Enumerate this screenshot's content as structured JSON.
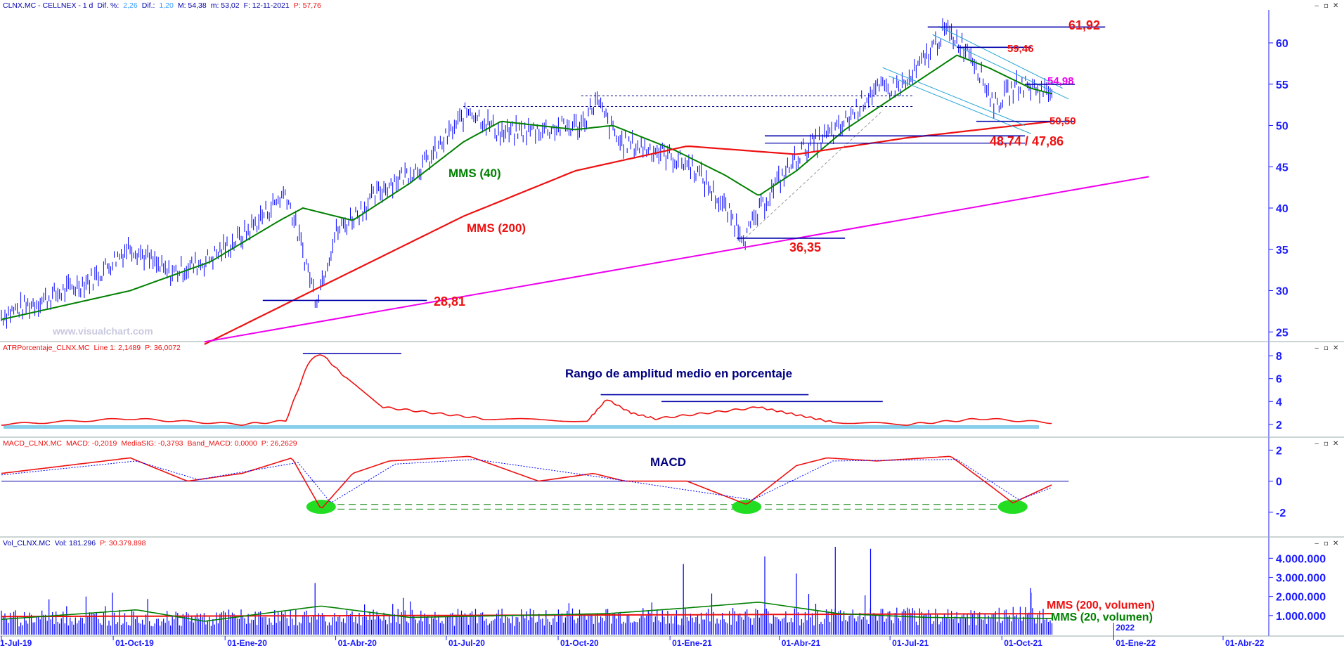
{
  "colors": {
    "price": "#0000ff",
    "mms40": "#008000",
    "mms200": "#ee1111",
    "trend": "#ee00ee",
    "axis": "#1a1aff",
    "label_red": "#ee1111",
    "label_magenta": "#ee00ee",
    "macd_signal": "#0000ff",
    "highlight": "#22dd22",
    "atr_base": "#87ceeb"
  },
  "window_buttons": [
    "‒",
    "▫",
    "✕"
  ],
  "panels": {
    "price": {
      "header": [
        {
          "text": "CLNX.MC - CELLNEX - 1 d",
          "color": "#0000aa"
        },
        {
          "text": "Dif. %:",
          "color": "#0000aa"
        },
        {
          "text": "2,26",
          "color": "#3399ff"
        },
        {
          "text": "Dif.:",
          "color": "#0000aa"
        },
        {
          "text": "1,20",
          "color": "#3399ff"
        },
        {
          "text": "M: 54,38",
          "color": "#0000aa"
        },
        {
          "text": "m: 53,02",
          "color": "#0000aa"
        },
        {
          "text": "F: 12-11-2021",
          "color": "#0000aa"
        },
        {
          "text": "P: 57,76",
          "color": "#ee1111"
        }
      ],
      "y_ticks": [
        "25",
        "30",
        "35",
        "40",
        "45",
        "50",
        "55",
        "60"
      ],
      "watermark": "www.visualchart.com"
    },
    "atr": {
      "header": [
        {
          "text": "ATRPorcentaje_CLNX.MC",
          "color": "#ee1111"
        },
        {
          "text": "Line 1: 2,1489",
          "color": "#ee1111"
        },
        {
          "text": "P: 36,0072",
          "color": "#ee1111"
        }
      ],
      "title": "Rango de amplitud medio en porcentaje",
      "y_ticks": [
        "2",
        "4",
        "6",
        "8"
      ]
    },
    "macd": {
      "header": [
        {
          "text": "MACD_CLNX.MC",
          "color": "#ee1111"
        },
        {
          "text": "MACD: -0,2019",
          "color": "#ee1111"
        },
        {
          "text": "MediaSIG: -0,3793",
          "color": "#ee1111"
        },
        {
          "text": "Band_MACD: 0,0000",
          "color": "#ee1111"
        },
        {
          "text": "P: 26,2629",
          "color": "#ee1111"
        }
      ],
      "title": "MACD",
      "y_ticks": [
        "-2",
        "0",
        "2"
      ]
    },
    "volume": {
      "header": [
        {
          "text": "Vol_CLNX.MC",
          "color": "#0000aa"
        },
        {
          "text": "Vol: 181.296",
          "color": "#0000aa"
        },
        {
          "text": "P: 30.379.898",
          "color": "#ee1111"
        }
      ],
      "y_ticks": [
        "1.000.000",
        "2.000.000",
        "3.000.000",
        "4.000.000"
      ],
      "legend_mms200": "MMS (200, volumen)",
      "legend_mms20": "MMS (20, volumen)"
    }
  },
  "x_ticks": [
    "1-Jul-19",
    "01-Oct-19",
    "01-Ene-20",
    "01-Abr-20",
    "01-Jul-20",
    "01-Oct-20",
    "01-Ene-21",
    "01-Abr-21",
    "01-Jul-21",
    "01-Oct-21",
    "01-Ene-22",
    "01-Abr-22"
  ],
  "x_year_marker": "2022",
  "annotations": {
    "mms40": "MMS (40)",
    "mms200": "MMS (200)",
    "l6192": "61,92",
    "l5946": "59,46",
    "l5498": "54,98",
    "l5050": "50,50",
    "l4874": "48,74 / 47,86",
    "l3635": "36,35",
    "l2881": "28,81"
  },
  "chart_data": [
    {
      "type": "ohlc",
      "name": "CLNX.MC",
      "y_range": [
        24,
        64
      ],
      "x_range": [
        "2019-07-01",
        "2022-06-01"
      ],
      "key_points": [
        {
          "date": "2019-07-01",
          "close": 27.0
        },
        {
          "date": "2019-08-15",
          "close": 29.5
        },
        {
          "date": "2019-09-15",
          "close": 31.5
        },
        {
          "date": "2019-10-15",
          "close": 35.5
        },
        {
          "date": "2019-11-15",
          "close": 32.0
        },
        {
          "date": "2019-12-15",
          "close": 33.5
        },
        {
          "date": "2020-01-15",
          "close": 36.5
        },
        {
          "date": "2020-02-20",
          "close": 42.0
        },
        {
          "date": "2020-03-16",
          "close": 29.0
        },
        {
          "date": "2020-04-01",
          "close": 37.0
        },
        {
          "date": "2020-05-15",
          "close": 43.0
        },
        {
          "date": "2020-06-15",
          "close": 45.5
        },
        {
          "date": "2020-07-20",
          "close": 52.0
        },
        {
          "date": "2020-08-15",
          "close": 49.0
        },
        {
          "date": "2020-09-15",
          "close": 49.5
        },
        {
          "date": "2020-10-20",
          "close": 50.0
        },
        {
          "date": "2020-11-01",
          "close": 53.0
        },
        {
          "date": "2020-11-20",
          "close": 48.0
        },
        {
          "date": "2020-12-20",
          "close": 47.0
        },
        {
          "date": "2021-01-20",
          "close": 45.0
        },
        {
          "date": "2021-02-15",
          "close": 40.0
        },
        {
          "date": "2021-03-04",
          "close": 36.5
        },
        {
          "date": "2021-03-25",
          "close": 42.0
        },
        {
          "date": "2021-04-20",
          "close": 47.0
        },
        {
          "date": "2021-05-20",
          "close": 49.5
        },
        {
          "date": "2021-06-15",
          "close": 54.0
        },
        {
          "date": "2021-07-15",
          "close": 55.0
        },
        {
          "date": "2021-08-15",
          "close": 61.5
        },
        {
          "date": "2021-09-05",
          "close": 59.0
        },
        {
          "date": "2021-09-25",
          "close": 52.5
        },
        {
          "date": "2021-10-15",
          "close": 55.0
        },
        {
          "date": "2021-11-12",
          "close": 54.0
        }
      ],
      "series": [
        {
          "name": "MMS (40)",
          "points": [
            {
              "date": "2019-07-01",
              "value": 26.5
            },
            {
              "date": "2019-10-15",
              "value": 30.0
            },
            {
              "date": "2019-12-20",
              "value": 33.5
            },
            {
              "date": "2020-02-15",
              "value": 38.5
            },
            {
              "date": "2020-03-05",
              "value": 40.0
            },
            {
              "date": "2020-04-15",
              "value": 38.5
            },
            {
              "date": "2020-06-01",
              "value": 43.0
            },
            {
              "date": "2020-07-15",
              "value": 48.0
            },
            {
              "date": "2020-08-15",
              "value": 50.5
            },
            {
              "date": "2020-10-15",
              "value": 49.5
            },
            {
              "date": "2020-11-15",
              "value": 50.0
            },
            {
              "date": "2021-01-05",
              "value": 47.0
            },
            {
              "date": "2021-02-15",
              "value": 44.0
            },
            {
              "date": "2021-03-15",
              "value": 41.5
            },
            {
              "date": "2021-04-15",
              "value": 44.5
            },
            {
              "date": "2021-05-25",
              "value": 49.5
            },
            {
              "date": "2021-07-15",
              "value": 54.5
            },
            {
              "date": "2021-08-25",
              "value": 58.5
            },
            {
              "date": "2021-09-20",
              "value": 57.0
            },
            {
              "date": "2021-10-25",
              "value": 54.5
            },
            {
              "date": "2021-11-12",
              "value": 53.8
            }
          ]
        },
        {
          "name": "MMS (200)",
          "points": [
            {
              "date": "2019-12-15",
              "value": 23.5
            },
            {
              "date": "2020-03-20",
              "value": 30.5
            },
            {
              "date": "2020-07-15",
              "value": 39.0
            },
            {
              "date": "2020-10-15",
              "value": 44.5
            },
            {
              "date": "2021-01-15",
              "value": 47.5
            },
            {
              "date": "2021-04-15",
              "value": 46.5
            },
            {
              "date": "2021-07-15",
              "value": 48.5
            },
            {
              "date": "2021-11-12",
              "value": 50.5
            }
          ]
        },
        {
          "name": "trendline",
          "points": [
            {
              "date": "2019-12-15",
              "value": 23.8
            },
            {
              "date": "2022-01-30",
              "value": 43.8
            }
          ]
        }
      ],
      "levels": [
        {
          "label": "61,92",
          "value": 61.92,
          "from": "2021-08-01",
          "to": "2021-12-25"
        },
        {
          "label": "59,46",
          "value": 59.46,
          "from": "2021-08-25",
          "to": "2021-10-25"
        },
        {
          "label": "54,98",
          "value": 54.98,
          "from": "2021-10-20",
          "to": "2021-11-30"
        },
        {
          "label": "50,50",
          "value": 50.5,
          "from": "2021-09-10",
          "to": "2021-11-30"
        },
        {
          "label": "48,74 / 47,86",
          "value": 48.74,
          "value2": 47.86,
          "from": "2021-03-20",
          "to": "2021-10-20"
        },
        {
          "label": "36,35",
          "value": 36.35,
          "from": "2021-02-25",
          "to": "2021-05-25"
        },
        {
          "label": "28,81",
          "value": 28.81,
          "from": "2020-02-01",
          "to": "2020-06-15"
        }
      ]
    },
    {
      "type": "line",
      "name": "ATRPorcentaje_CLNX.MC",
      "y_range": [
        1.5,
        8.5
      ],
      "series": [
        {
          "points": [
            {
              "date": "2019-07-01",
              "value": 2.0
            },
            {
              "date": "2019-10-15",
              "value": 2.5
            },
            {
              "date": "2020-01-15",
              "value": 2.0
            },
            {
              "date": "2020-02-20",
              "value": 2.3
            },
            {
              "date": "2020-03-10",
              "value": 7.5
            },
            {
              "date": "2020-03-20",
              "value": 8.2
            },
            {
              "date": "2020-04-10",
              "value": 6.0
            },
            {
              "date": "2020-05-10",
              "value": 3.5
            },
            {
              "date": "2020-08-01",
              "value": 2.5
            },
            {
              "date": "2020-10-25",
              "value": 2.3
            },
            {
              "date": "2020-11-10",
              "value": 4.2
            },
            {
              "date": "2020-11-30",
              "value": 3.0
            },
            {
              "date": "2020-12-20",
              "value": 2.5
            },
            {
              "date": "2021-03-15",
              "value": 3.5
            },
            {
              "date": "2021-05-15",
              "value": 2.2
            },
            {
              "date": "2021-07-15",
              "value": 2.0
            },
            {
              "date": "2021-09-15",
              "value": 2.5
            },
            {
              "date": "2021-11-12",
              "value": 2.15
            }
          ]
        }
      ],
      "levels": [
        {
          "value": 8.2,
          "from": "2020-03-05",
          "to": "2020-05-25"
        },
        {
          "value": 4.6,
          "from": "2020-11-05",
          "to": "2021-04-25"
        },
        {
          "value": 4.0,
          "from": "2020-12-25",
          "to": "2021-06-25"
        }
      ]
    },
    {
      "type": "line",
      "name": "MACD_CLNX.MC",
      "y_range": [
        -3.5,
        2.2
      ],
      "series": [
        {
          "name": "MACD",
          "points": [
            {
              "date": "2019-07-01",
              "value": 0.5
            },
            {
              "date": "2019-10-15",
              "value": 1.5
            },
            {
              "date": "2019-12-01",
              "value": 0.0
            },
            {
              "date": "2020-01-15",
              "value": 0.5
            },
            {
              "date": "2020-02-25",
              "value": 1.5
            },
            {
              "date": "2020-03-20",
              "value": -1.8
            },
            {
              "date": "2020-04-15",
              "value": 0.5
            },
            {
              "date": "2020-05-15",
              "value": 1.3
            },
            {
              "date": "2020-07-20",
              "value": 1.6
            },
            {
              "date": "2020-09-15",
              "value": 0.0
            },
            {
              "date": "2020-10-30",
              "value": 0.5
            },
            {
              "date": "2020-11-25",
              "value": 0.0
            },
            {
              "date": "2021-01-15",
              "value": 0.0
            },
            {
              "date": "2021-03-05",
              "value": -1.5
            },
            {
              "date": "2021-04-15",
              "value": 1.0
            },
            {
              "date": "2021-05-10",
              "value": 1.5
            },
            {
              "date": "2021-06-20",
              "value": 1.3
            },
            {
              "date": "2021-08-20",
              "value": 1.6
            },
            {
              "date": "2021-09-25",
              "value": -0.5
            },
            {
              "date": "2021-10-10",
              "value": -1.4
            },
            {
              "date": "2021-11-12",
              "value": -0.2
            }
          ]
        },
        {
          "name": "MediaSIG",
          "points": [
            {
              "date": "2019-07-01",
              "value": 0.4
            },
            {
              "date": "2019-10-20",
              "value": 1.3
            },
            {
              "date": "2019-12-10",
              "value": 0.1
            },
            {
              "date": "2020-03-01",
              "value": 1.2
            },
            {
              "date": "2020-03-28",
              "value": -1.4
            },
            {
              "date": "2020-05-20",
              "value": 1.1
            },
            {
              "date": "2020-07-25",
              "value": 1.4
            },
            {
              "date": "2020-11-10",
              "value": 0.2
            },
            {
              "date": "2021-03-10",
              "value": -1.2
            },
            {
              "date": "2021-05-15",
              "value": 1.3
            },
            {
              "date": "2021-08-25",
              "value": 1.4
            },
            {
              "date": "2021-10-15",
              "value": -1.2
            },
            {
              "date": "2021-11-12",
              "value": -0.38
            }
          ]
        }
      ],
      "levels": [
        {
          "value": 0.0,
          "from": "2019-07-01",
          "to": "2021-11-25"
        },
        {
          "value": -1.5,
          "from": "2020-03-15",
          "to": "2021-10-20",
          "dashed": true
        },
        {
          "value": -1.8,
          "from": "2020-03-15",
          "to": "2021-10-20",
          "dashed": true
        }
      ],
      "highlights": [
        "2020-03-20",
        "2021-03-05",
        "2021-10-10"
      ]
    },
    {
      "type": "bar",
      "name": "Vol_CLNX.MC",
      "y_range": [
        0,
        4600000
      ],
      "spikes": [
        {
          "date": "2020-03-15",
          "value": 2700000
        },
        {
          "date": "2021-01-12",
          "value": 3700000
        },
        {
          "date": "2021-03-20",
          "value": 4100000
        },
        {
          "date": "2021-04-15",
          "value": 3200000
        },
        {
          "date": "2021-05-17",
          "value": 4600000
        },
        {
          "date": "2021-06-15",
          "value": 4500000
        },
        {
          "date": "2021-10-25",
          "value": 2200000
        }
      ],
      "series": [
        {
          "name": "MMS (200, volumen)",
          "points": [
            {
              "date": "2019-07-01",
              "value": 950000
            },
            {
              "date": "2020-06-01",
              "value": 1000000
            },
            {
              "date": "2021-03-01",
              "value": 1050000
            },
            {
              "date": "2021-11-12",
              "value": 1100000
            }
          ]
        },
        {
          "name": "MMS (20, volumen)",
          "points": [
            {
              "date": "2019-07-01",
              "value": 800000
            },
            {
              "date": "2019-10-20",
              "value": 1300000
            },
            {
              "date": "2019-12-15",
              "value": 700000
            },
            {
              "date": "2020-03-20",
              "value": 1500000
            },
            {
              "date": "2020-06-01",
              "value": 900000
            },
            {
              "date": "2020-11-10",
              "value": 1100000
            },
            {
              "date": "2021-01-15",
              "value": 1400000
            },
            {
              "date": "2021-03-15",
              "value": 1700000
            },
            {
              "date": "2021-05-20",
              "value": 1100000
            },
            {
              "date": "2021-08-01",
              "value": 900000
            },
            {
              "date": "2021-11-12",
              "value": 850000
            }
          ]
        }
      ]
    }
  ]
}
